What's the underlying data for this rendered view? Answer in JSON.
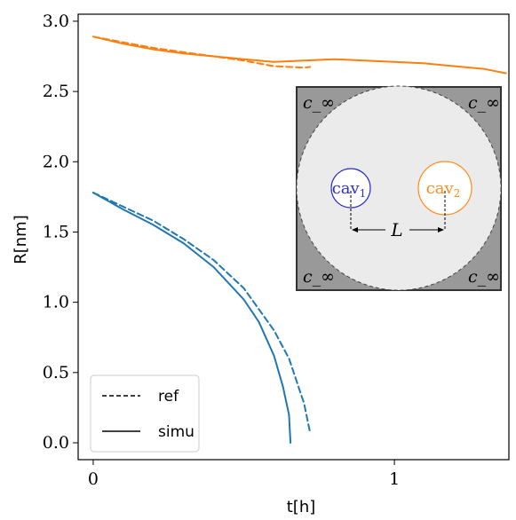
{
  "chart_data": {
    "type": "line",
    "xlabel": "t[h]",
    "ylabel": "R[nm]",
    "xlim": [
      -0.05,
      1.38
    ],
    "ylim": [
      -0.12,
      3.05
    ],
    "xticks": [
      0,
      1
    ],
    "xtick_labels": [
      "0",
      "1"
    ],
    "yticks": [
      0.0,
      0.5,
      1.0,
      1.5,
      2.0,
      2.5,
      3.0
    ],
    "ytick_labels": [
      "0.0",
      "0.5",
      "1.0",
      "1.5",
      "2.0",
      "2.5",
      "3.0"
    ],
    "grid": false,
    "legend": {
      "position": "lower-left",
      "entries": [
        {
          "label": "ref",
          "style": "dashed"
        },
        {
          "label": "simu",
          "style": "solid"
        }
      ]
    },
    "colors": {
      "blue": "#1f77b4",
      "orange": "#ff7f0e"
    },
    "series": [
      {
        "color": "blue",
        "style": "dashed",
        "x": [
          0.0,
          0.1,
          0.2,
          0.3,
          0.4,
          0.5,
          0.6,
          0.65,
          0.7,
          0.72
        ],
        "y": [
          1.78,
          1.68,
          1.58,
          1.45,
          1.3,
          1.1,
          0.8,
          0.6,
          0.28,
          0.07
        ]
      },
      {
        "color": "blue",
        "style": "solid",
        "x": [
          0.0,
          0.1,
          0.2,
          0.3,
          0.4,
          0.5,
          0.55,
          0.6,
          0.63,
          0.65,
          0.655
        ],
        "y": [
          1.78,
          1.66,
          1.55,
          1.42,
          1.25,
          1.02,
          0.86,
          0.62,
          0.4,
          0.2,
          0.0
        ]
      },
      {
        "color": "orange",
        "style": "dashed",
        "x": [
          0.0,
          0.1,
          0.2,
          0.3,
          0.4,
          0.5,
          0.6,
          0.7,
          0.72
        ],
        "y": [
          2.89,
          2.85,
          2.81,
          2.78,
          2.75,
          2.72,
          2.68,
          2.67,
          2.675
        ]
      },
      {
        "color": "orange",
        "style": "solid",
        "x": [
          0.0,
          0.1,
          0.2,
          0.3,
          0.4,
          0.5,
          0.6,
          0.7,
          0.8,
          0.9,
          1.0,
          1.1,
          1.2,
          1.3,
          1.37
        ],
        "y": [
          2.89,
          2.84,
          2.8,
          2.77,
          2.75,
          2.73,
          2.71,
          2.72,
          2.73,
          2.72,
          2.71,
          2.7,
          2.68,
          2.66,
          2.63
        ]
      }
    ],
    "inset": {
      "corner_labels": [
        "c_∞",
        "c_∞",
        "c_∞",
        "c_∞"
      ],
      "cav1": {
        "base": "cav",
        "sub": "1",
        "color": "#2e2ed0"
      },
      "cav2": {
        "base": "cav",
        "sub": "2",
        "color": "#ff8c1a"
      },
      "distance_label": "L"
    }
  }
}
